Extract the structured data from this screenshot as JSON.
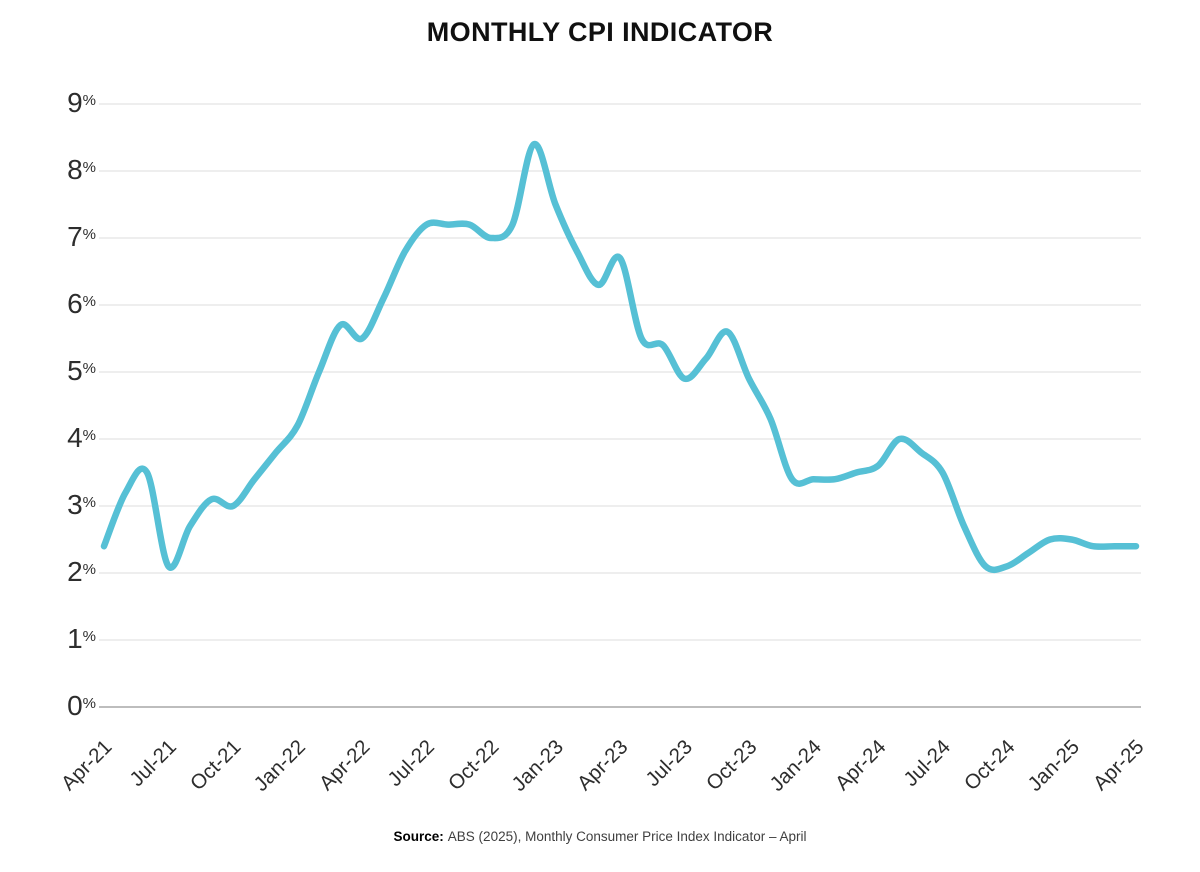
{
  "title": "MONTHLY CPI INDICATOR",
  "source": {
    "label": "Source:",
    "text": "ABS (2025), Monthly Consumer Price Index Indicator – April"
  },
  "chart_data": {
    "type": "line",
    "title": "MONTHLY CPI INDICATOR",
    "unit": "%",
    "categories": [
      "Apr-21",
      "May-21",
      "Jun-21",
      "Jul-21",
      "Aug-21",
      "Sep-21",
      "Oct-21",
      "Nov-21",
      "Dec-21",
      "Jan-22",
      "Feb-22",
      "Mar-22",
      "Apr-22",
      "May-22",
      "Jun-22",
      "Jul-22",
      "Aug-22",
      "Sep-22",
      "Oct-22",
      "Nov-22",
      "Dec-22",
      "Jan-23",
      "Feb-23",
      "Mar-23",
      "Apr-23",
      "May-23",
      "Jun-23",
      "Jul-23",
      "Aug-23",
      "Sep-23",
      "Oct-23",
      "Nov-23",
      "Dec-23",
      "Jan-24",
      "Feb-24",
      "Mar-24",
      "Apr-24",
      "May-24",
      "Jun-24",
      "Jul-24",
      "Aug-24",
      "Sep-24",
      "Oct-24",
      "Nov-24",
      "Dec-24",
      "Jan-25",
      "Feb-25",
      "Mar-25",
      "Apr-25"
    ],
    "values": [
      2.4,
      3.2,
      3.5,
      2.1,
      2.7,
      3.1,
      3.0,
      3.4,
      3.8,
      4.2,
      5.0,
      5.7,
      5.5,
      6.1,
      6.8,
      7.2,
      7.2,
      7.2,
      7.0,
      7.2,
      8.4,
      7.5,
      6.8,
      6.3,
      6.7,
      5.5,
      5.4,
      4.9,
      5.2,
      5.6,
      4.9,
      4.3,
      3.4,
      3.4,
      3.4,
      3.5,
      3.6,
      4.0,
      3.8,
      3.5,
      2.7,
      2.1,
      2.1,
      2.3,
      2.5,
      2.5,
      2.4,
      2.4,
      2.4
    ],
    "x_tick_labels": [
      "Apr-21",
      "Jul-21",
      "Oct-21",
      "Jan-22",
      "Apr-22",
      "Jul-22",
      "Oct-22",
      "Jan-23",
      "Apr-23",
      "Jul-23",
      "Oct-23",
      "Jan-24",
      "Apr-24",
      "Jul-24",
      "Oct-24",
      "Jan-25",
      "Apr-25"
    ],
    "x_tick_interval_months": 3,
    "y_tick_labels": [
      "0%",
      "1%",
      "2%",
      "3%",
      "4%",
      "5%",
      "6%",
      "7%",
      "8%",
      "9%"
    ],
    "ylim": [
      0,
      9
    ],
    "grid": true,
    "legend": "none",
    "line_color": "#56c0d5",
    "line_width": 6.5,
    "line_smoothing": "spline",
    "grid_color": "#e4e4e4",
    "axis_line_color": "#bdbdbd",
    "label_color": "#2d2d2d"
  }
}
